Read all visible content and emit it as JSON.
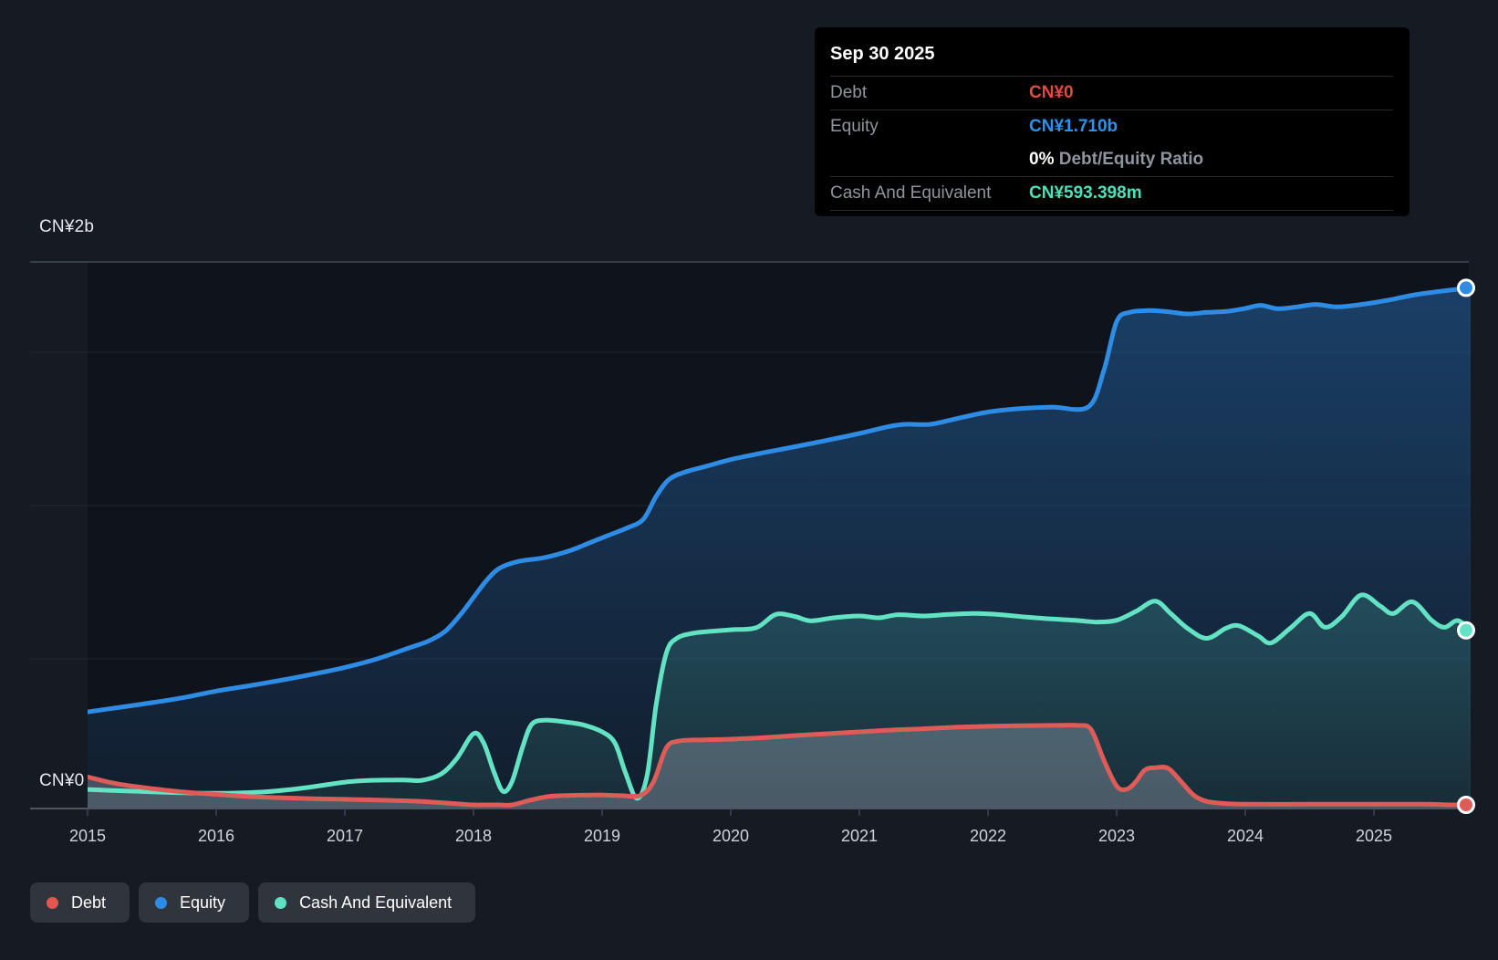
{
  "tooltip": {
    "date": "Sep 30 2025",
    "rows": [
      {
        "label": "Debt",
        "value": "CN¥0",
        "color": "#e8493f"
      },
      {
        "label": "Equity",
        "value": "CN¥1.710b",
        "color": "#2a93ee"
      },
      {
        "label": "",
        "value_bold": "0%",
        "value_rest": "Debt/Equity Ratio"
      },
      {
        "label": "Cash And Equivalent",
        "value": "CN¥593.398m",
        "color": "#4ee0bb"
      }
    ]
  },
  "legend": {
    "items": [
      {
        "label": "Debt",
        "color": "#e4564f"
      },
      {
        "label": "Equity",
        "color": "#2e8ce4"
      },
      {
        "label": "Cash And Equivalent",
        "color": "#5fe2c1"
      }
    ]
  },
  "chart_data": {
    "type": "area",
    "title": "",
    "y_axis": {
      "max_label": "CN¥2b",
      "zero_label": "CN¥0",
      "unit": "CN¥ billions",
      "ylim": [
        0,
        2
      ],
      "gridlines_b": [
        0.5,
        1.0,
        1.5
      ]
    },
    "x_ticks": [
      "2015",
      "2016",
      "2017",
      "2018",
      "2019",
      "2020",
      "2021",
      "2022",
      "2023",
      "2024",
      "2025"
    ],
    "x_range": [
      2015.0,
      2025.75
    ],
    "legend_position": "bottom-left",
    "series": [
      {
        "name": "Equity",
        "color": "#2e8ce4",
        "end_value_label": "CN¥1.710b",
        "points": [
          [
            2015.0,
            0.327
          ],
          [
            2015.25,
            0.342
          ],
          [
            2015.5,
            0.357
          ],
          [
            2015.75,
            0.374
          ],
          [
            2016.0,
            0.395
          ],
          [
            2016.25,
            0.412
          ],
          [
            2016.5,
            0.43
          ],
          [
            2016.75,
            0.45
          ],
          [
            2017.0,
            0.472
          ],
          [
            2017.25,
            0.5
          ],
          [
            2017.5,
            0.536
          ],
          [
            2017.65,
            0.558
          ],
          [
            2017.78,
            0.59
          ],
          [
            2017.9,
            0.645
          ],
          [
            2018.0,
            0.7
          ],
          [
            2018.1,
            0.755
          ],
          [
            2018.2,
            0.795
          ],
          [
            2018.35,
            0.818
          ],
          [
            2018.55,
            0.83
          ],
          [
            2018.75,
            0.853
          ],
          [
            2018.9,
            0.878
          ],
          [
            2019.05,
            0.903
          ],
          [
            2019.2,
            0.928
          ],
          [
            2019.32,
            0.955
          ],
          [
            2019.42,
            1.03
          ],
          [
            2019.52,
            1.085
          ],
          [
            2019.65,
            1.11
          ],
          [
            2019.8,
            1.127
          ],
          [
            2020.0,
            1.15
          ],
          [
            2020.25,
            1.172
          ],
          [
            2020.5,
            1.192
          ],
          [
            2020.75,
            1.213
          ],
          [
            2021.0,
            1.235
          ],
          [
            2021.2,
            1.255
          ],
          [
            2021.35,
            1.265
          ],
          [
            2021.55,
            1.265
          ],
          [
            2021.75,
            1.283
          ],
          [
            2022.0,
            1.305
          ],
          [
            2022.25,
            1.316
          ],
          [
            2022.5,
            1.321
          ],
          [
            2022.78,
            1.322
          ],
          [
            2022.9,
            1.44
          ],
          [
            2023.0,
            1.6
          ],
          [
            2023.1,
            1.63
          ],
          [
            2023.25,
            1.636
          ],
          [
            2023.4,
            1.632
          ],
          [
            2023.55,
            1.625
          ],
          [
            2023.7,
            1.63
          ],
          [
            2023.85,
            1.633
          ],
          [
            2024.0,
            1.643
          ],
          [
            2024.12,
            1.653
          ],
          [
            2024.25,
            1.642
          ],
          [
            2024.4,
            1.648
          ],
          [
            2024.55,
            1.656
          ],
          [
            2024.7,
            1.648
          ],
          [
            2024.85,
            1.653
          ],
          [
            2025.0,
            1.662
          ],
          [
            2025.15,
            1.673
          ],
          [
            2025.3,
            1.686
          ],
          [
            2025.5,
            1.698
          ],
          [
            2025.75,
            1.71
          ]
        ]
      },
      {
        "name": "Cash And Equivalent",
        "color": "#63e3c4",
        "end_value_label": "CN¥593.398m",
        "points": [
          [
            2015.0,
            0.074
          ],
          [
            2015.3,
            0.069
          ],
          [
            2015.6,
            0.065
          ],
          [
            2015.9,
            0.062
          ],
          [
            2016.1,
            0.062
          ],
          [
            2016.4,
            0.067
          ],
          [
            2016.7,
            0.08
          ],
          [
            2017.0,
            0.098
          ],
          [
            2017.2,
            0.104
          ],
          [
            2017.45,
            0.105
          ],
          [
            2017.6,
            0.104
          ],
          [
            2017.75,
            0.125
          ],
          [
            2017.87,
            0.175
          ],
          [
            2018.0,
            0.256
          ],
          [
            2018.08,
            0.225
          ],
          [
            2018.16,
            0.13
          ],
          [
            2018.23,
            0.068
          ],
          [
            2018.3,
            0.1
          ],
          [
            2018.38,
            0.21
          ],
          [
            2018.45,
            0.285
          ],
          [
            2018.55,
            0.3
          ],
          [
            2018.7,
            0.295
          ],
          [
            2018.85,
            0.285
          ],
          [
            2019.0,
            0.262
          ],
          [
            2019.1,
            0.225
          ],
          [
            2019.18,
            0.13
          ],
          [
            2019.27,
            0.045
          ],
          [
            2019.35,
            0.12
          ],
          [
            2019.42,
            0.35
          ],
          [
            2019.5,
            0.52
          ],
          [
            2019.58,
            0.567
          ],
          [
            2019.7,
            0.583
          ],
          [
            2019.85,
            0.59
          ],
          [
            2020.0,
            0.595
          ],
          [
            2020.2,
            0.602
          ],
          [
            2020.35,
            0.645
          ],
          [
            2020.5,
            0.638
          ],
          [
            2020.62,
            0.624
          ],
          [
            2020.8,
            0.634
          ],
          [
            2021.0,
            0.64
          ],
          [
            2021.15,
            0.634
          ],
          [
            2021.3,
            0.644
          ],
          [
            2021.5,
            0.64
          ],
          [
            2021.7,
            0.645
          ],
          [
            2021.9,
            0.648
          ],
          [
            2022.1,
            0.644
          ],
          [
            2022.3,
            0.636
          ],
          [
            2022.5,
            0.63
          ],
          [
            2022.7,
            0.625
          ],
          [
            2022.85,
            0.62
          ],
          [
            2023.0,
            0.626
          ],
          [
            2023.15,
            0.655
          ],
          [
            2023.3,
            0.688
          ],
          [
            2023.42,
            0.648
          ],
          [
            2023.55,
            0.6
          ],
          [
            2023.7,
            0.567
          ],
          [
            2023.85,
            0.6
          ],
          [
            2023.95,
            0.608
          ],
          [
            2024.1,
            0.575
          ],
          [
            2024.2,
            0.552
          ],
          [
            2024.35,
            0.6
          ],
          [
            2024.5,
            0.648
          ],
          [
            2024.62,
            0.603
          ],
          [
            2024.75,
            0.638
          ],
          [
            2024.9,
            0.708
          ],
          [
            2025.05,
            0.672
          ],
          [
            2025.15,
            0.648
          ],
          [
            2025.3,
            0.686
          ],
          [
            2025.45,
            0.625
          ],
          [
            2025.55,
            0.603
          ],
          [
            2025.65,
            0.625
          ],
          [
            2025.75,
            0.593
          ]
        ]
      },
      {
        "name": "Debt",
        "color": "#dd5c58",
        "end_value_label": "CN¥0",
        "points": [
          [
            2015.0,
            0.115
          ],
          [
            2015.2,
            0.095
          ],
          [
            2015.4,
            0.082
          ],
          [
            2015.6,
            0.072
          ],
          [
            2015.8,
            0.064
          ],
          [
            2016.0,
            0.058
          ],
          [
            2016.25,
            0.051
          ],
          [
            2016.5,
            0.047
          ],
          [
            2016.75,
            0.044
          ],
          [
            2017.0,
            0.042
          ],
          [
            2017.3,
            0.039
          ],
          [
            2017.6,
            0.035
          ],
          [
            2017.85,
            0.028
          ],
          [
            2018.0,
            0.02
          ],
          [
            2018.1,
            0.013
          ],
          [
            2018.2,
            0.009
          ],
          [
            2018.3,
            0.018
          ],
          [
            2018.45,
            0.04
          ],
          [
            2018.6,
            0.052
          ],
          [
            2018.8,
            0.055
          ],
          [
            2019.0,
            0.056
          ],
          [
            2019.15,
            0.054
          ],
          [
            2019.3,
            0.055
          ],
          [
            2019.4,
            0.1
          ],
          [
            2019.5,
            0.21
          ],
          [
            2019.6,
            0.232
          ],
          [
            2019.8,
            0.236
          ],
          [
            2020.0,
            0.238
          ],
          [
            2020.25,
            0.243
          ],
          [
            2020.5,
            0.25
          ],
          [
            2020.75,
            0.256
          ],
          [
            2021.0,
            0.262
          ],
          [
            2021.25,
            0.268
          ],
          [
            2021.5,
            0.272
          ],
          [
            2021.75,
            0.277
          ],
          [
            2022.0,
            0.28
          ],
          [
            2022.25,
            0.282
          ],
          [
            2022.5,
            0.283
          ],
          [
            2022.7,
            0.283
          ],
          [
            2022.8,
            0.27
          ],
          [
            2022.9,
            0.17
          ],
          [
            2023.0,
            0.085
          ],
          [
            2023.08,
            0.075
          ],
          [
            2023.15,
            0.1
          ],
          [
            2023.22,
            0.138
          ],
          [
            2023.3,
            0.145
          ],
          [
            2023.4,
            0.143
          ],
          [
            2023.5,
            0.1
          ],
          [
            2023.6,
            0.055
          ],
          [
            2023.7,
            0.035
          ],
          [
            2023.85,
            0.028
          ],
          [
            2024.0,
            0.026
          ],
          [
            2024.5,
            0.026
          ],
          [
            2025.0,
            0.026
          ],
          [
            2025.4,
            0.026
          ],
          [
            2025.6,
            0.022
          ],
          [
            2025.75,
            0.0
          ]
        ]
      }
    ]
  }
}
